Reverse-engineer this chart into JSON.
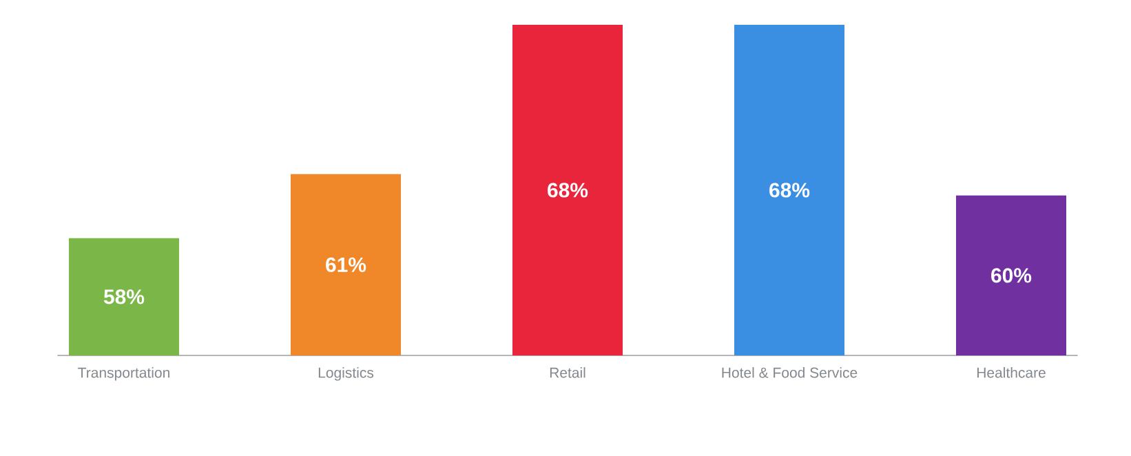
{
  "chart_data": {
    "type": "bar",
    "categories": [
      "Transportation",
      "Logistics",
      "Retail",
      "Hotel & Food Service",
      "Healthcare"
    ],
    "values": [
      58,
      61,
      68,
      68,
      60
    ],
    "value_labels": [
      "58%",
      "61%",
      "68%",
      "68%",
      "60%"
    ],
    "colors": [
      "#7ab648",
      "#f0882a",
      "#e8253b",
      "#3a8fe3",
      "#7030a0"
    ],
    "ylim": [
      52.5,
      68
    ],
    "tick_labels": "x",
    "grid": false
  }
}
